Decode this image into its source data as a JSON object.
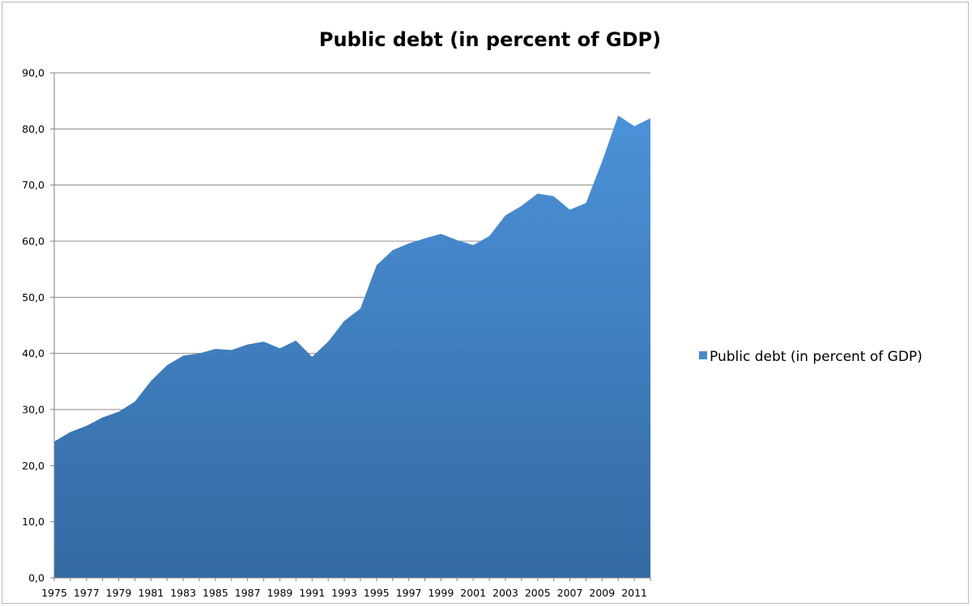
{
  "chart_data": {
    "type": "area",
    "title": "Public debt (in percent of GDP)",
    "xlabel": "",
    "ylabel": "",
    "ylim": [
      0,
      90
    ],
    "yticks": [
      "0,0",
      "10,0",
      "20,0",
      "30,0",
      "40,0",
      "50,0",
      "60,0",
      "70,0",
      "80,0",
      "90,0"
    ],
    "x": [
      1975,
      1976,
      1977,
      1978,
      1979,
      1980,
      1981,
      1982,
      1983,
      1984,
      1985,
      1986,
      1987,
      1988,
      1989,
      1990,
      1991,
      1992,
      1993,
      1994,
      1995,
      1996,
      1997,
      1998,
      1999,
      2000,
      2001,
      2002,
      2003,
      2004,
      2005,
      2006,
      2007,
      2008,
      2009,
      2010,
      2011,
      2012
    ],
    "xtick_labels": [
      "1975",
      "1977",
      "1979",
      "1981",
      "1983",
      "1985",
      "1987",
      "1989",
      "1991",
      "1993",
      "1995",
      "1997",
      "1999",
      "2001",
      "2003",
      "2005",
      "2007",
      "2009",
      "2011"
    ],
    "grid": true,
    "legend_position": "right",
    "series": [
      {
        "name": "Public debt (in percent of GDP)",
        "color": "#4a8acb",
        "values": [
          24.3,
          26.0,
          27.1,
          28.6,
          29.6,
          31.4,
          35.1,
          37.9,
          39.6,
          40.0,
          40.8,
          40.6,
          41.6,
          42.1,
          40.9,
          42.3,
          39.4,
          42.1,
          45.8,
          48.0,
          55.7,
          58.4,
          59.6,
          60.5,
          61.3,
          60.2,
          59.3,
          60.9,
          64.6,
          66.3,
          68.5,
          68.0,
          65.6,
          66.8,
          74.2,
          82.4,
          80.5,
          81.9
        ]
      }
    ]
  }
}
